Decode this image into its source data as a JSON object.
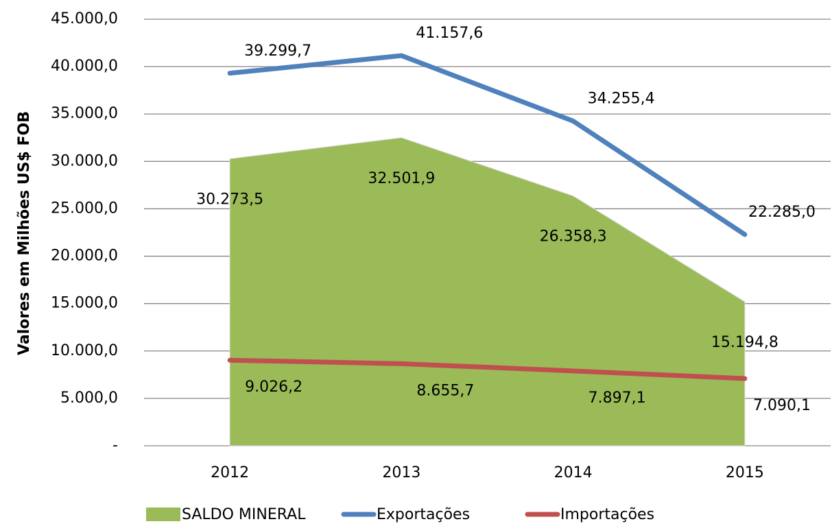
{
  "chart_data": {
    "type": "line",
    "y_axis_label": "Valores em Milhões US$ FOB",
    "categories": [
      "2012",
      "2013",
      "2014",
      "2015"
    ],
    "ylim": [
      0,
      45000
    ],
    "yticks": [
      {
        "value": 0,
        "label": "-"
      },
      {
        "value": 5000,
        "label": "5.000,0"
      },
      {
        "value": 10000,
        "label": "10.000,0"
      },
      {
        "value": 15000,
        "label": "15.000,0"
      },
      {
        "value": 20000,
        "label": "20.000,0"
      },
      {
        "value": 25000,
        "label": "25.000,0"
      },
      {
        "value": 30000,
        "label": "30.000,0"
      },
      {
        "value": 35000,
        "label": "35.000,0"
      },
      {
        "value": 40000,
        "label": "40.000,0"
      },
      {
        "value": 45000,
        "label": "45.000,0"
      }
    ],
    "grid": true,
    "legend": "bottom",
    "series": [
      {
        "name": "SALDO MINERAL",
        "kind": "area",
        "color": "#9bbb59",
        "values": [
          30273.5,
          32501.9,
          26358.3,
          15194.8
        ],
        "value_labels": [
          "30.273,5",
          "32.501,9",
          "26.358,3",
          "15.194,8"
        ]
      },
      {
        "name": "Exportações",
        "kind": "line",
        "color": "#4f81bd",
        "values": [
          39299.7,
          41157.6,
          34255.4,
          22285.0
        ],
        "value_labels": [
          "39.299,7",
          "41.157,6",
          "34.255,4",
          "22.285,0"
        ]
      },
      {
        "name": "Importações",
        "kind": "line",
        "color": "#c0504d",
        "values": [
          9026.2,
          8655.7,
          7897.1,
          7090.1
        ],
        "value_labels": [
          "9.026,2",
          "8.655,7",
          "7.897,1",
          "7.090,1"
        ]
      }
    ]
  }
}
